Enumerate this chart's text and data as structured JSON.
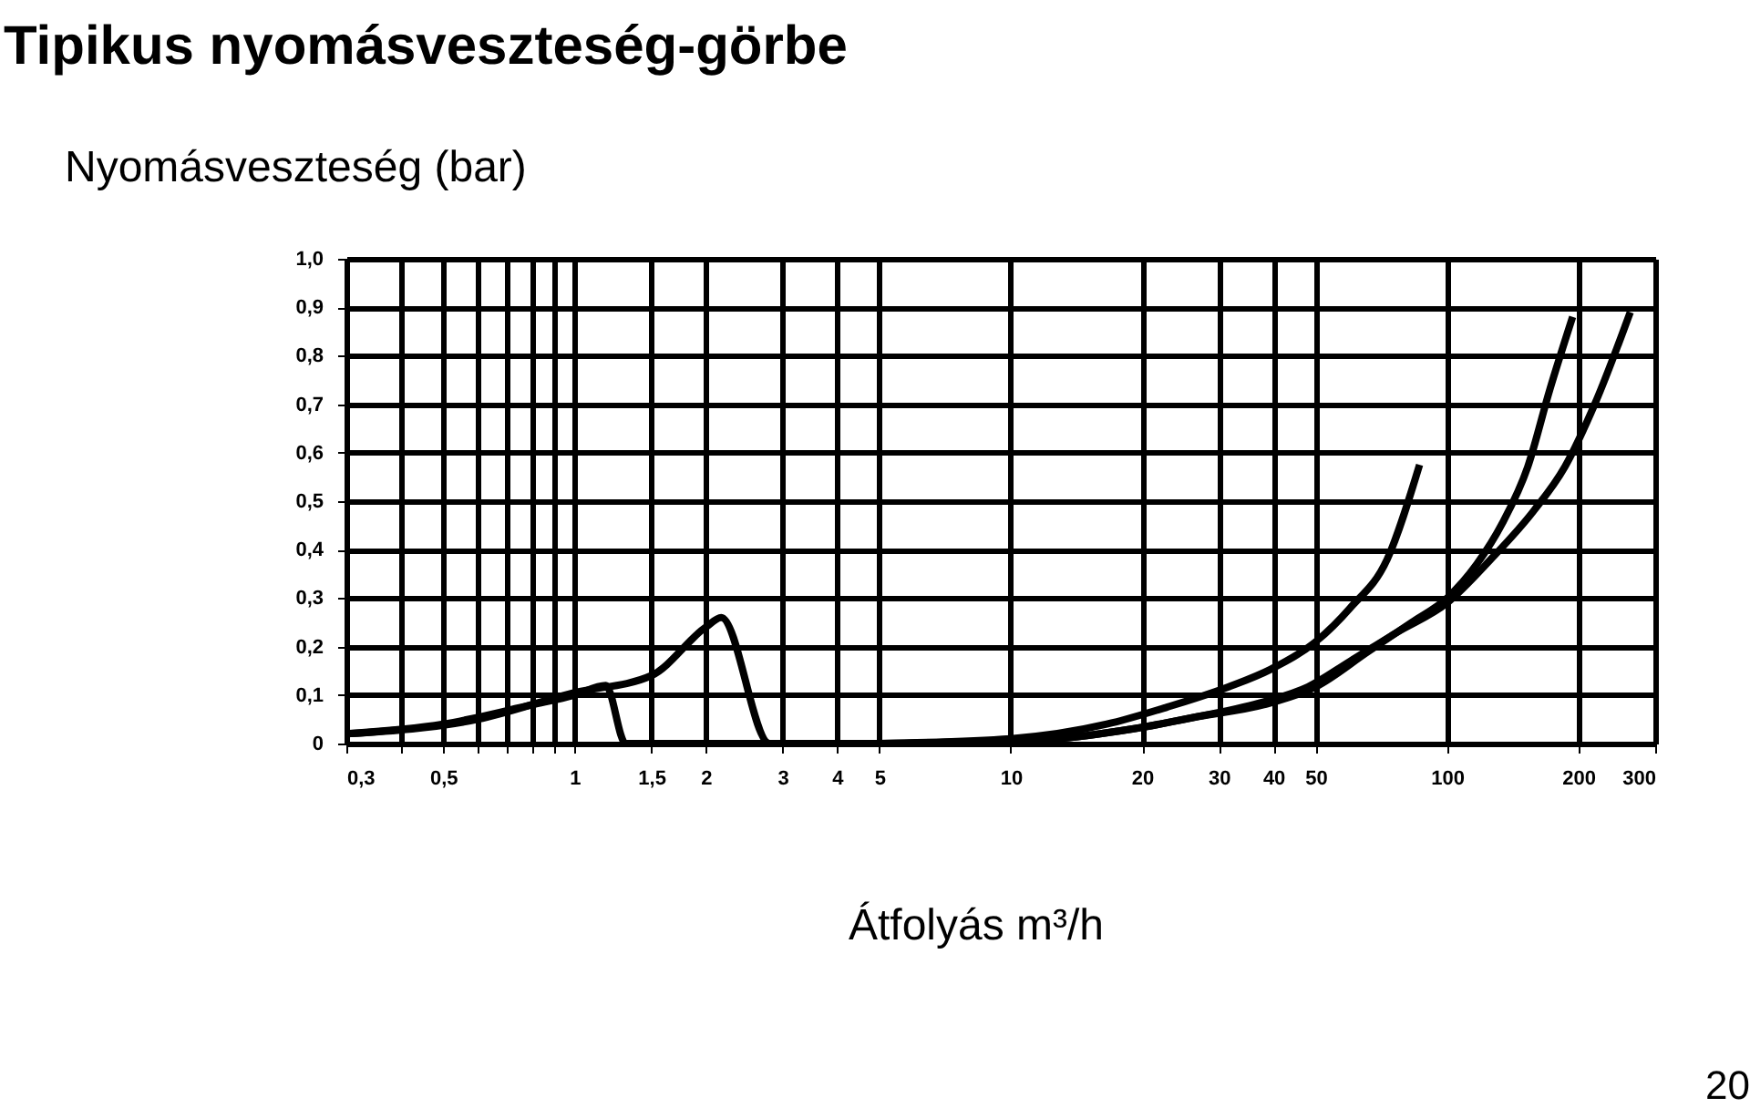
{
  "chart_data": {
    "type": "line",
    "title": "Tipikus nyomásveszteség-görbe",
    "ylabel": "Nyomásveszteség (bar)",
    "xlabel": "Átfolyás m³/h",
    "log": "x",
    "grid": true,
    "legend": false,
    "marker": "none",
    "line_style": "solid",
    "xlim": [
      0.3,
      300
    ],
    "ylim": [
      0,
      1.0
    ],
    "xticks": [
      {
        "value": 0.3,
        "label": "0,3"
      },
      {
        "value": 0.4,
        "label": null
      },
      {
        "value": 0.5,
        "label": "0,5"
      },
      {
        "value": 0.6,
        "label": null
      },
      {
        "value": 0.7,
        "label": null
      },
      {
        "value": 0.8,
        "label": null
      },
      {
        "value": 0.9,
        "label": null
      },
      1,
      {
        "value": 1.5,
        "label": "1,5"
      },
      2,
      3,
      4,
      5,
      10,
      20,
      30,
      40,
      50,
      100,
      200,
      300
    ],
    "yticks": [
      0,
      {
        "value": 0.1,
        "label": "0,1"
      },
      {
        "value": 0.2,
        "label": "0,2"
      },
      {
        "value": 0.3,
        "label": "0,3"
      },
      {
        "value": 0.4,
        "label": "0,4"
      },
      {
        "value": 0.5,
        "label": "0,5"
      },
      {
        "value": 0.6,
        "label": "0,6"
      },
      {
        "value": 0.7,
        "label": "0,7"
      },
      {
        "value": 0.8,
        "label": "0,8"
      },
      {
        "value": 0.9,
        "label": "0,9"
      },
      {
        "value": 1.0,
        "label": "1,0"
      }
    ],
    "annotations": [
      "20"
    ],
    "series": [
      {
        "color": "#000000",
        "x": [
          0.3,
          0.5,
          0.8,
          1.0,
          1.18,
          1.31,
          5
        ],
        "values": [
          0.02,
          0.04,
          0.08,
          0.1,
          0.12,
          0,
          0
        ]
      },
      {
        "color": "#000000",
        "x": [
          0.3,
          0.6,
          1.0,
          1.5,
          2.0,
          2.17,
          2.8,
          10
        ],
        "values": [
          0.02,
          0.05,
          0.105,
          0.14,
          0.24,
          0.26,
          0,
          0
        ]
      },
      {
        "color": "#000000",
        "x": [
          5,
          10,
          16.6,
          22.8,
          31.6,
          39.6,
          50,
          60,
          72.9,
          86.5
        ],
        "values": [
          0,
          0.01,
          0.04,
          0.075,
          0.117,
          0.154,
          0.21,
          0.28,
          0.38,
          0.575
        ]
      },
      {
        "color": "#000000",
        "x": [
          5,
          12.6,
          19,
          27,
          38,
          50,
          66,
          83,
          100,
          117,
          134,
          153,
          172,
          194
        ],
        "values": [
          0,
          0.01,
          0.03,
          0.056,
          0.08,
          0.117,
          0.19,
          0.25,
          0.3,
          0.37,
          0.455,
          0.57,
          0.73,
          0.88
        ]
      },
      {
        "color": "#000000",
        "x": [
          5,
          12.6,
          19,
          27,
          38,
          48,
          60,
          77,
          100,
          126,
          158,
          186,
          218,
          263
        ],
        "values": [
          0,
          0.01,
          0.03,
          0.056,
          0.086,
          0.117,
          0.17,
          0.23,
          0.29,
          0.38,
          0.48,
          0.57,
          0.7,
          0.89
        ]
      }
    ]
  }
}
